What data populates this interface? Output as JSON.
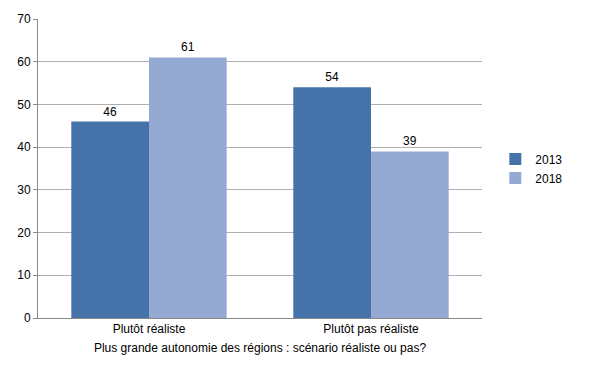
{
  "chart_data": {
    "type": "bar",
    "x_label": "Plus grande autonomie des régions : scénario réaliste ou pas?",
    "categories": [
      "Plutôt réaliste",
      "Plutôt pas réaliste"
    ],
    "series": [
      {
        "name": "2013",
        "color": "#4672aa",
        "values": [
          46,
          54
        ]
      },
      {
        "name": "2018",
        "color": "#95aad3",
        "values": [
          61,
          39
        ]
      }
    ],
    "ylim": [
      0,
      70
    ],
    "yticks": [
      0,
      10,
      20,
      30,
      40,
      50,
      60,
      70
    ],
    "grid": true,
    "legend": "right",
    "data_labels": true
  }
}
